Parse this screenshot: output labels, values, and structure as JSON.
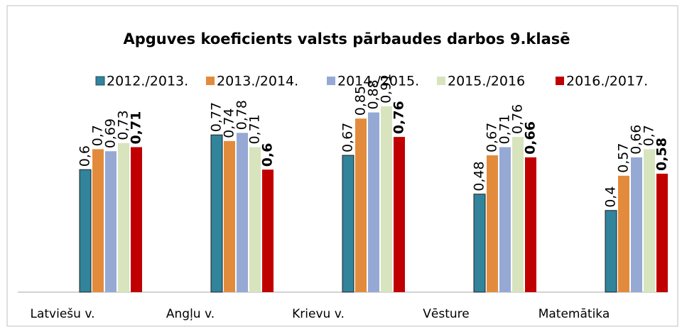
{
  "chart_data": {
    "type": "bar",
    "title": "Apguves koeficients valsts pārbaudes darbos 9.klasē",
    "categories": [
      "Latviešu v.",
      "Angļu v.",
      "Krievu v.",
      "Vēsture",
      "Matemātika"
    ],
    "ylim": [
      0,
      1
    ],
    "series": [
      {
        "name": "2012./2013.",
        "color": "#31849b",
        "values": [
          0.6,
          0.77,
          0.67,
          0.48,
          0.4
        ],
        "value_labels": [
          "0,6",
          "0,77",
          "0,67",
          "0,48",
          "0,4"
        ]
      },
      {
        "name": "2013./2014.",
        "color": "#e38b3d",
        "values": [
          0.7,
          0.74,
          0.85,
          0.67,
          0.57
        ],
        "value_labels": [
          "0,7",
          "0,74",
          "0,85",
          "0,67",
          "0,57"
        ]
      },
      {
        "name": "2014./2015.",
        "color": "#95a9d4",
        "values": [
          0.69,
          0.78,
          0.88,
          0.71,
          0.66
        ],
        "value_labels": [
          "0,69",
          "0,78",
          "0,88",
          "0,71",
          "0,66"
        ]
      },
      {
        "name": "2015./2016",
        "color": "#d7e4bd",
        "values": [
          0.73,
          0.71,
          0.91,
          0.76,
          0.7
        ],
        "value_labels": [
          "0,73",
          "0,71",
          "0,91",
          "0,76",
          "0,7"
        ]
      },
      {
        "name": "2016./2017.",
        "color": "#c00000",
        "values": [
          0.71,
          0.6,
          0.76,
          0.66,
          0.58
        ],
        "value_labels": [
          "0,71",
          "0,6",
          "0,76",
          "0,66",
          "0,58"
        ]
      }
    ],
    "legend": "top"
  }
}
